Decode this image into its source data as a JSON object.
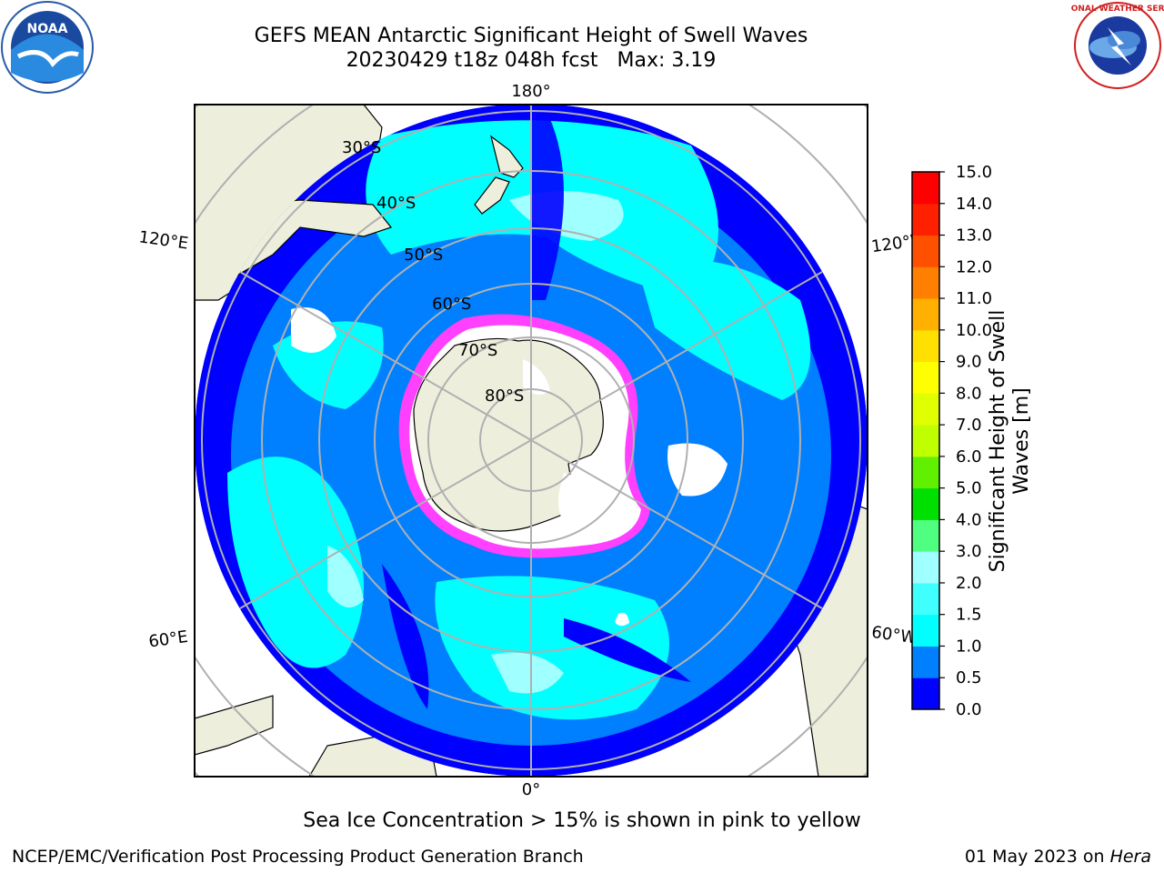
{
  "title": {
    "line1": "GEFS MEAN Antarctic Significant Height of Swell Waves",
    "run": "20230429 t18z 048h fcst",
    "max": "Max: 3.19"
  },
  "map": {
    "projection": "south-polar-stereographic",
    "longitude_labels": {
      "top": "180°",
      "bottom": "0°",
      "upper_left": "120°E",
      "upper_right": "120°W",
      "lower_left": "60°E",
      "lower_right": "60°W"
    },
    "latitude_labels": [
      "30°S",
      "40°S",
      "50°S",
      "60°S",
      "70°S",
      "80°S"
    ],
    "colors": {
      "land": "#eeeedd",
      "ocean_low": "#0000ff",
      "ocean_mid": "#0080ff",
      "ocean_high": "#00ffff",
      "sea_ice": "#ff00ff",
      "grid": "#b0b0b0"
    }
  },
  "colorbar": {
    "title_line1": "Significant Height of Swell",
    "title_line2": "Waves [m]",
    "ticks": [
      "0.0",
      "0.5",
      "1.0",
      "1.5",
      "2.0",
      "3.0",
      "4.0",
      "5.0",
      "6.0",
      "7.0",
      "8.0",
      "9.0",
      "10.0",
      "11.0",
      "12.0",
      "13.0",
      "14.0",
      "15.0"
    ],
    "colors": [
      "#0000ff",
      "#0080ff",
      "#00ffff",
      "#40ffff",
      "#a0ffff",
      "#50ff80",
      "#00e000",
      "#60f000",
      "#c0ff00",
      "#e0ff00",
      "#ffff00",
      "#ffe000",
      "#ffb000",
      "#ff8000",
      "#ff5000",
      "#ff2000",
      "#ff0000"
    ]
  },
  "caption": "Sea Ice Concentration > 15% is shown in pink to yellow",
  "footer": {
    "left": "NCEP/EMC/Verification Post Processing Product Generation Branch",
    "right_date": "01 May 2023 on ",
    "right_host": "Hera"
  },
  "logos": {
    "noaa_text": "NOAA",
    "nws_text": "NATIONAL WEATHER SERVICE"
  }
}
